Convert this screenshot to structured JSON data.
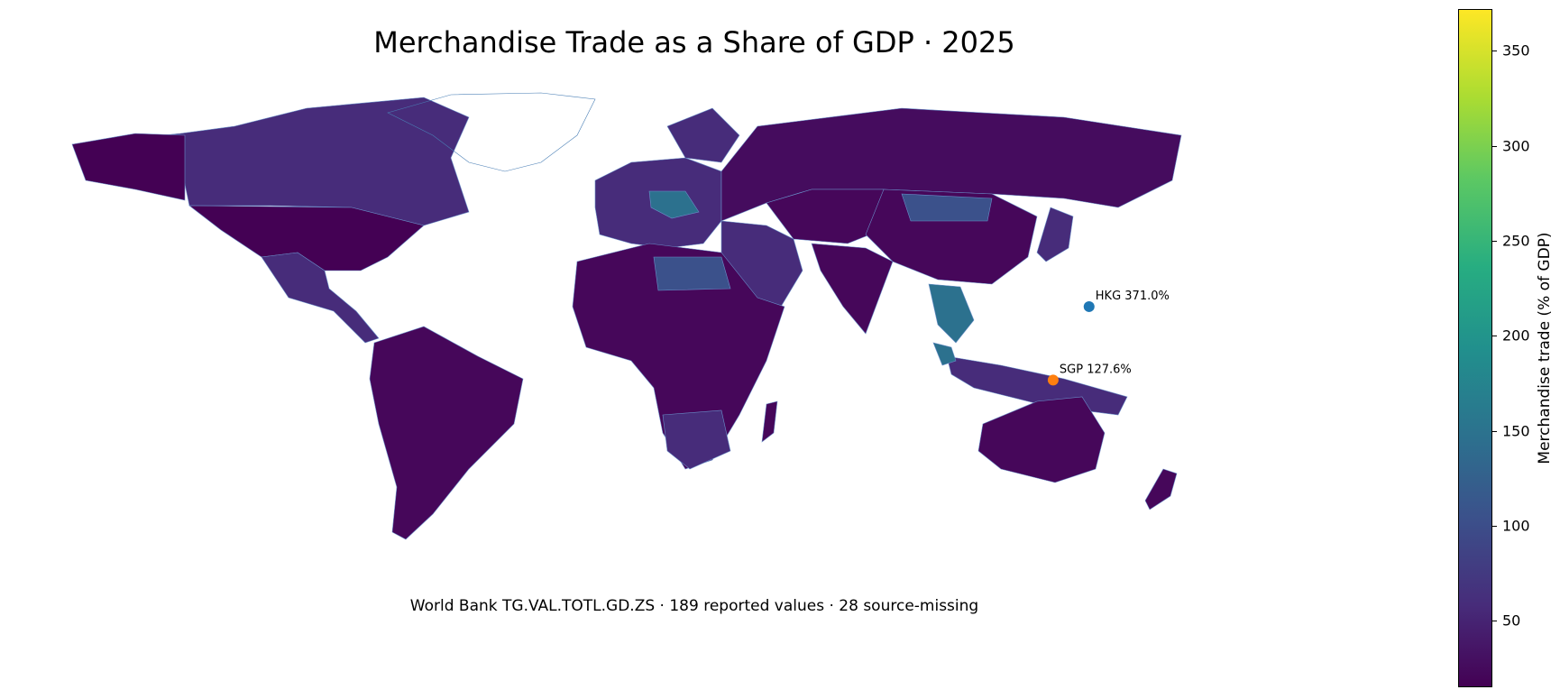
{
  "title": "Merchandise Trade as a Share of GDP · 2025",
  "subtitle": "World Bank TG.VAL.TOTL.GD.ZS · 189 reported values · 28 source-missing",
  "colorbar": {
    "label": "Merchandise trade (% of GDP)",
    "ticks": [
      "50",
      "100",
      "150",
      "200",
      "250",
      "300",
      "350"
    ],
    "range": [
      15,
      372
    ],
    "colormap": "viridis"
  },
  "colors": {
    "low": "#440154",
    "mid": "#21908d",
    "high": "#fde725",
    "border": "#6a8fc9",
    "missing_outline": "#4a7fb5",
    "marker_hkg": "#1f77b4",
    "marker_sgp": "#ff7f0e"
  },
  "annotations": [
    {
      "code": "HKG",
      "text": "HKG 371.0%",
      "value": 371.0,
      "lon": 114.2,
      "lat": 22.3,
      "marker": "marker_hkg"
    },
    {
      "code": "SGP",
      "text": "SGP 127.6%",
      "value": 127.6,
      "lon": 103.8,
      "lat": 1.35,
      "marker": "marker_sgp"
    }
  ]
}
